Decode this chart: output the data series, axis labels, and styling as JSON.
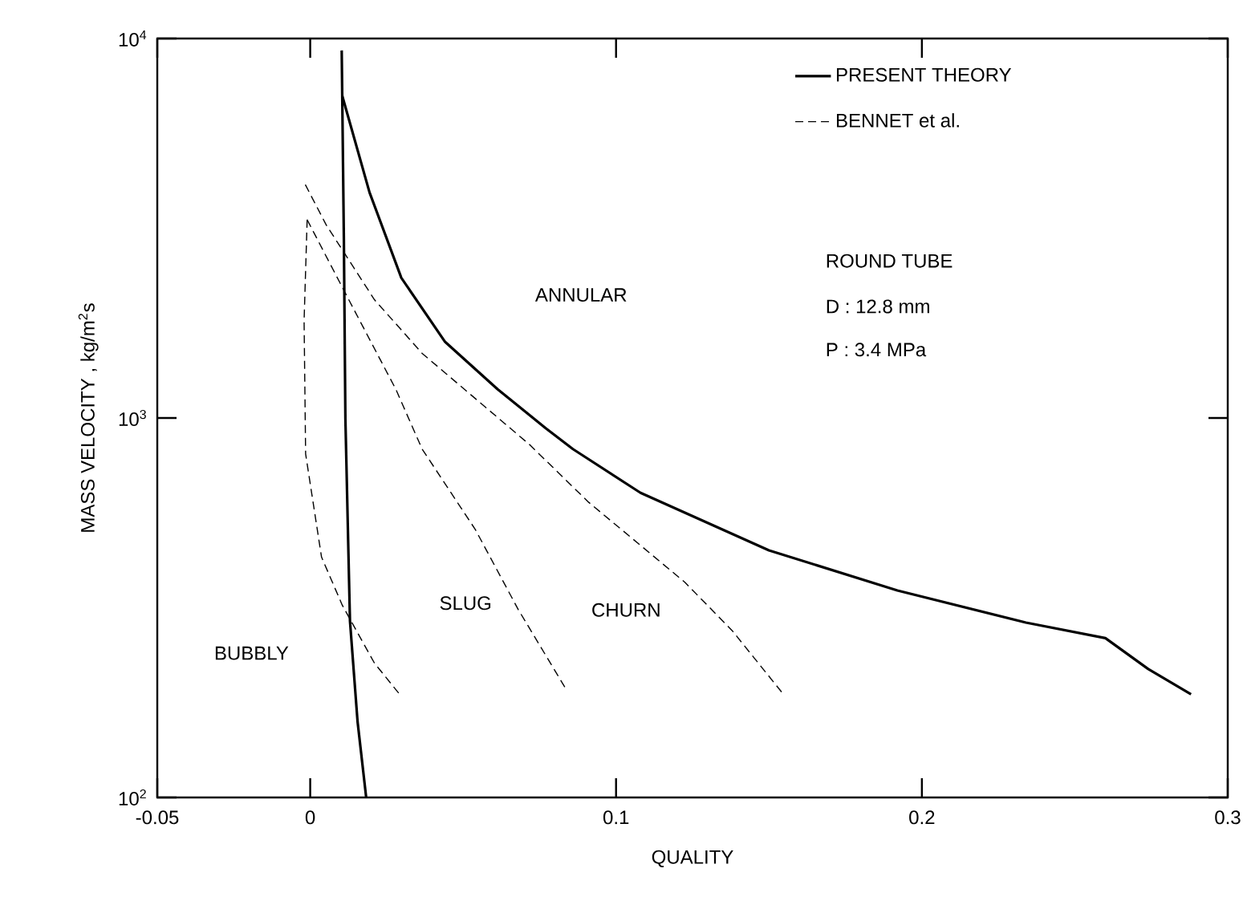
{
  "chart_data": {
    "type": "line",
    "xlabel": "QUALITY",
    "ylabel": "MASS VELOCITY ,    kg/m$^{2}$s",
    "log": "y",
    "xlim": [
      -0.05,
      0.3
    ],
    "ylim": [
      100,
      10000
    ],
    "xticks": [
      -0.05,
      0,
      0.1,
      0.2,
      0.3
    ],
    "yticks": [
      {
        "value": 100,
        "label": "10$^{2}$"
      },
      {
        "value": 1000,
        "label": "10$^{3}$"
      },
      {
        "value": 10000,
        "label": "10$^{4}$"
      }
    ],
    "legend": "top right",
    "grid": false,
    "marker": "none",
    "series": [
      {
        "name": "PRESENT THEORY",
        "color": "#000000",
        "line_style": "solid",
        "x": [
          0.0105,
          0.0194,
          0.0298,
          0.044,
          0.0613,
          0.077,
          0.0859,
          0.108,
          0.15,
          0.192,
          0.234,
          0.26,
          0.274,
          0.288
        ],
        "values": [
          7050,
          3930,
          2340,
          1590,
          1190,
          940,
          828,
          635,
          448,
          351,
          289,
          263,
          218,
          187
        ]
      },
      {
        "color": "#000000",
        "line_style": "solid",
        "x": [
          0.0103,
          0.011,
          0.0115,
          0.013,
          0.0155,
          0.0183
        ],
        "values": [
          9300,
          3000,
          1000,
          292,
          158,
          100
        ]
      },
      {
        "name": "BENNET et al.",
        "color": "#000000",
        "line_style": "dashed",
        "x": [
          -0.0016,
          0.0052,
          0.021,
          0.0366,
          0.0717,
          0.091,
          0.1225,
          0.138,
          0.1545
        ],
        "values": [
          4120,
          3230,
          2050,
          1480,
          851,
          600,
          369,
          275,
          188
        ]
      },
      {
        "color": "#000000",
        "line_style": "dashed",
        "x": [
          -0.001,
          0.0126,
          0.028,
          0.0366,
          0.054,
          0.068,
          0.0838
        ],
        "values": [
          3330,
          2050,
          1190,
          828,
          508,
          313,
          192
        ]
      },
      {
        "color": "#000000",
        "line_style": "dashed",
        "x": [
          -0.001,
          -0.002,
          -0.0015,
          0.0037,
          0.0105,
          0.021,
          0.029
        ],
        "values": [
          3330,
          1800,
          804,
          430,
          321,
          226,
          188
        ]
      }
    ],
    "annotations": [
      "ANNULAR",
      "SLUG",
      "CHURN",
      "BUBBLY",
      "ROUND TUBE",
      "D : 12.8 mm",
      "P : 3.4 MPa"
    ]
  }
}
